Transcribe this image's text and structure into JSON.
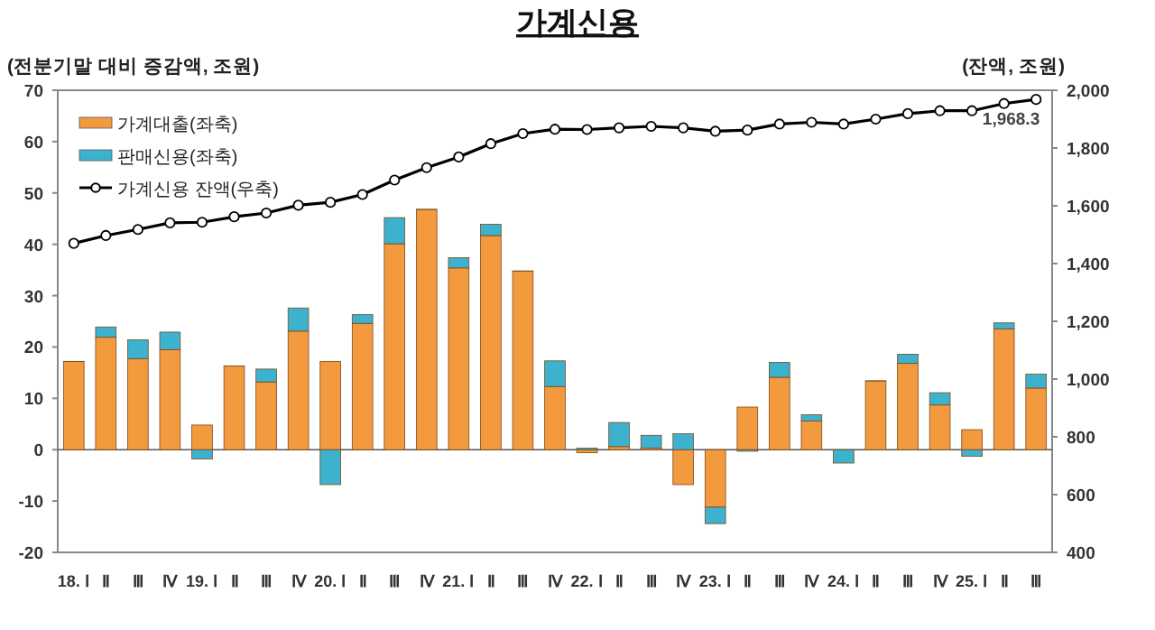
{
  "chart_data": {
    "type": "bar",
    "title": "가계신용",
    "ylabel": "(전분기말 대비 증감액, 조원)",
    "y2label": "(잔액, 조원)",
    "categories": [
      "18. Ⅰ",
      "Ⅱ",
      "Ⅲ",
      "Ⅳ",
      "19. Ⅰ",
      "Ⅱ",
      "Ⅲ",
      "Ⅳ",
      "20. Ⅰ",
      "Ⅱ",
      "Ⅲ",
      "Ⅳ",
      "21. Ⅰ",
      "Ⅱ",
      "Ⅲ",
      "Ⅳ",
      "22. Ⅰ",
      "Ⅱ",
      "Ⅲ",
      "Ⅳ",
      "23. Ⅰ",
      "Ⅱ",
      "Ⅲ",
      "Ⅳ",
      "24. Ⅰ",
      "Ⅱ",
      "Ⅲ",
      "Ⅳ",
      "25. Ⅰ",
      "Ⅱ",
      "Ⅲ"
    ],
    "stacked": true,
    "series": [
      {
        "name": "가계대출(좌축)",
        "color": "#f39a3e",
        "values": [
          17.2,
          21.9,
          17.7,
          19.5,
          4.8,
          16.3,
          13.2,
          23.1,
          17.2,
          24.6,
          40.1,
          46.8,
          35.4,
          41.7,
          34.8,
          12.3,
          -0.6,
          0.6,
          0.3,
          -6.8,
          -11.2,
          8.3,
          14.1,
          5.6,
          null,
          13.4,
          16.8,
          8.7,
          3.9,
          23.5,
          12.0
        ]
      },
      {
        "name": "판매신용(좌축)",
        "color": "#3cb2cf",
        "values": [
          0,
          2.0,
          3.7,
          3.4,
          -1.8,
          0,
          2.5,
          4.5,
          -6.8,
          1.7,
          5.1,
          0,
          2.0,
          2.2,
          0,
          5.0,
          0.3,
          4.7,
          2.5,
          3.1,
          -3.2,
          -0.3,
          2.9,
          1.2,
          -2.6,
          0,
          1.8,
          2.4,
          -1.3,
          1.2,
          2.7
        ]
      },
      {
        "name": "가계신용 잔액(우축)",
        "type": "line",
        "axis": "y2",
        "color": "#000000",
        "marker": "circle",
        "values": [
          1470,
          1497,
          1518,
          1541,
          1543,
          1562,
          1575,
          1602,
          1612,
          1639,
          1689,
          1732,
          1769,
          1815,
          1850,
          1865,
          1864,
          1870,
          1875,
          1870,
          1858,
          1862,
          1883,
          1889,
          1883,
          1900,
          1919,
          1929,
          1929,
          1954,
          1968.3
        ],
        "value_labels": [
          null,
          null,
          null,
          null,
          null,
          null,
          null,
          null,
          null,
          null,
          null,
          null,
          null,
          null,
          null,
          null,
          null,
          null,
          null,
          null,
          null,
          null,
          null,
          null,
          null,
          null,
          null,
          null,
          null,
          null,
          "1,968.3"
        ]
      }
    ],
    "ylim": [
      -20,
      70
    ],
    "yticks": [
      -20,
      -10,
      0,
      10,
      20,
      30,
      40,
      50,
      60,
      70
    ],
    "y2lim": [
      400,
      2000
    ],
    "y2ticks": [
      400,
      600,
      800,
      {
        "value": 1000,
        "label": "1,000"
      },
      {
        "value": 1200,
        "label": "1,200"
      },
      {
        "value": 1400,
        "label": "1,400"
      },
      {
        "value": 1600,
        "label": "1,600"
      },
      {
        "value": 1800,
        "label": "1,800"
      },
      {
        "value": 2000,
        "label": "2,000"
      }
    ],
    "legend": "top left"
  }
}
